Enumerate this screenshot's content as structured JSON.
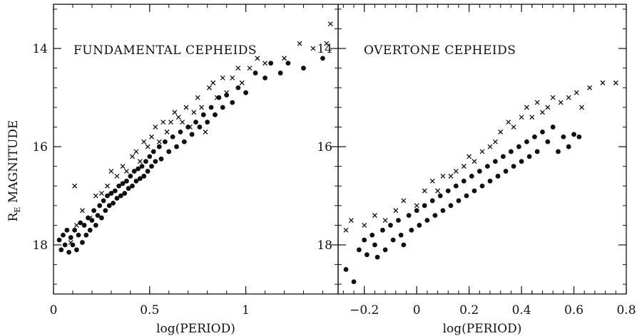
{
  "chart_data": [
    {
      "type": "scatter",
      "title": "FUNDAMENTAL CEPHEIDS",
      "xlabel": "log(PERIOD)",
      "ylabel_main": "R",
      "ylabel_sub": "E",
      "ylabel_rest": " MAGNITUDE",
      "xlim": [
        0.0,
        1.48
      ],
      "ylim": [
        19.0,
        13.1
      ],
      "y_inverted": true,
      "x_ticks": [
        {
          "value": 0,
          "label": "0"
        },
        {
          "value": 0.5,
          "label": "0.5"
        },
        {
          "value": 1,
          "label": "1"
        }
      ],
      "y_ticks": [
        {
          "value": 14,
          "label": "14"
        },
        {
          "value": 16,
          "label": "16"
        },
        {
          "value": 18,
          "label": "18"
        }
      ],
      "series": [
        {
          "marker": "x",
          "points": [
            [
              0.09,
              17.95
            ],
            [
              0.11,
              16.8
            ],
            [
              0.12,
              17.6
            ],
            [
              0.15,
              17.3
            ],
            [
              0.19,
              17.45
            ],
            [
              0.22,
              17.0
            ],
            [
              0.25,
              16.95
            ],
            [
              0.28,
              16.8
            ],
            [
              0.3,
              16.5
            ],
            [
              0.33,
              16.6
            ],
            [
              0.36,
              16.4
            ],
            [
              0.38,
              16.5
            ],
            [
              0.41,
              16.2
            ],
            [
              0.43,
              16.1
            ],
            [
              0.45,
              16.3
            ],
            [
              0.47,
              15.9
            ],
            [
              0.49,
              16.0
            ],
            [
              0.51,
              15.8
            ],
            [
              0.53,
              15.6
            ],
            [
              0.55,
              15.9
            ],
            [
              0.57,
              15.5
            ],
            [
              0.59,
              15.7
            ],
            [
              0.61,
              15.5
            ],
            [
              0.63,
              15.3
            ],
            [
              0.65,
              15.4
            ],
            [
              0.67,
              15.5
            ],
            [
              0.69,
              15.2
            ],
            [
              0.71,
              15.6
            ],
            [
              0.73,
              15.3
            ],
            [
              0.75,
              15.0
            ],
            [
              0.77,
              15.2
            ],
            [
              0.79,
              15.7
            ],
            [
              0.81,
              14.8
            ],
            [
              0.83,
              14.7
            ],
            [
              0.85,
              15.0
            ],
            [
              0.88,
              14.6
            ],
            [
              0.9,
              14.9
            ],
            [
              0.93,
              14.6
            ],
            [
              0.96,
              14.4
            ],
            [
              0.98,
              14.7
            ],
            [
              1.02,
              14.4
            ],
            [
              1.06,
              14.2
            ],
            [
              1.1,
              14.3
            ],
            [
              1.2,
              14.2
            ],
            [
              1.28,
              13.9
            ],
            [
              1.35,
              14.0
            ],
            [
              1.42,
              13.9
            ],
            [
              1.44,
              13.5
            ]
          ]
        },
        {
          "marker": "dot",
          "points": [
            [
              0.03,
              17.9
            ],
            [
              0.04,
              18.1
            ],
            [
              0.05,
              17.8
            ],
            [
              0.06,
              18.0
            ],
            [
              0.07,
              17.7
            ],
            [
              0.08,
              18.15
            ],
            [
              0.09,
              17.85
            ],
            [
              0.1,
              18.0
            ],
            [
              0.11,
              17.7
            ],
            [
              0.12,
              18.1
            ],
            [
              0.13,
              17.8
            ],
            [
              0.14,
              17.55
            ],
            [
              0.15,
              17.95
            ],
            [
              0.16,
              17.6
            ],
            [
              0.17,
              17.8
            ],
            [
              0.18,
              17.45
            ],
            [
              0.19,
              17.7
            ],
            [
              0.2,
              17.5
            ],
            [
              0.21,
              17.3
            ],
            [
              0.22,
              17.6
            ],
            [
              0.23,
              17.4
            ],
            [
              0.24,
              17.2
            ],
            [
              0.25,
              17.45
            ],
            [
              0.26,
              17.1
            ],
            [
              0.27,
              17.3
            ],
            [
              0.28,
              17.0
            ],
            [
              0.29,
              17.2
            ],
            [
              0.3,
              16.95
            ],
            [
              0.31,
              17.15
            ],
            [
              0.32,
              16.9
            ],
            [
              0.33,
              17.05
            ],
            [
              0.34,
              16.8
            ],
            [
              0.35,
              17.0
            ],
            [
              0.36,
              16.75
            ],
            [
              0.37,
              16.95
            ],
            [
              0.38,
              16.7
            ],
            [
              0.39,
              16.85
            ],
            [
              0.4,
              16.6
            ],
            [
              0.41,
              16.8
            ],
            [
              0.42,
              16.5
            ],
            [
              0.43,
              16.7
            ],
            [
              0.44,
              16.45
            ],
            [
              0.45,
              16.65
            ],
            [
              0.46,
              16.4
            ],
            [
              0.47,
              16.6
            ],
            [
              0.48,
              16.3
            ],
            [
              0.49,
              16.5
            ],
            [
              0.5,
              16.2
            ],
            [
              0.51,
              16.4
            ],
            [
              0.52,
              16.1
            ],
            [
              0.53,
              16.3
            ],
            [
              0.55,
              16.0
            ],
            [
              0.56,
              16.25
            ],
            [
              0.58,
              15.9
            ],
            [
              0.6,
              16.1
            ],
            [
              0.62,
              15.8
            ],
            [
              0.64,
              16.0
            ],
            [
              0.66,
              15.7
            ],
            [
              0.68,
              15.9
            ],
            [
              0.7,
              15.6
            ],
            [
              0.72,
              15.75
            ],
            [
              0.74,
              15.5
            ],
            [
              0.76,
              15.6
            ],
            [
              0.78,
              15.35
            ],
            [
              0.8,
              15.5
            ],
            [
              0.82,
              15.2
            ],
            [
              0.84,
              15.35
            ],
            [
              0.86,
              15.0
            ],
            [
              0.88,
              15.2
            ],
            [
              0.9,
              14.95
            ],
            [
              0.93,
              15.1
            ],
            [
              0.96,
              14.8
            ],
            [
              1.0,
              14.9
            ],
            [
              1.05,
              14.5
            ],
            [
              1.1,
              14.6
            ],
            [
              1.13,
              14.3
            ],
            [
              1.18,
              14.5
            ],
            [
              1.22,
              14.3
            ],
            [
              1.3,
              14.4
            ],
            [
              1.4,
              14.2
            ]
          ]
        }
      ]
    },
    {
      "type": "scatter",
      "title": "OVERTONE CEPHEIDS",
      "xlabel": "log(PERIOD)",
      "xlim": [
        -0.3,
        0.8
      ],
      "ylim": [
        19.0,
        13.1
      ],
      "y_inverted": true,
      "x_ticks": [
        {
          "value": -0.2,
          "label": "−0.2"
        },
        {
          "value": 0,
          "label": "0"
        },
        {
          "value": 0.2,
          "label": "0.2"
        },
        {
          "value": 0.4,
          "label": "0.4"
        },
        {
          "value": 0.6,
          "label": "0.6"
        },
        {
          "value": 0.8,
          "label": "0.8"
        }
      ],
      "y_ticks": [
        {
          "value": 14,
          "label": "14"
        },
        {
          "value": 16,
          "label": "16"
        },
        {
          "value": 18,
          "label": "18"
        }
      ],
      "series": [
        {
          "marker": "x",
          "points": [
            [
              -0.27,
              17.7
            ],
            [
              -0.25,
              17.5
            ],
            [
              -0.2,
              17.6
            ],
            [
              -0.16,
              17.4
            ],
            [
              -0.12,
              17.5
            ],
            [
              -0.08,
              17.3
            ],
            [
              -0.05,
              17.1
            ],
            [
              0.0,
              17.2
            ],
            [
              0.03,
              16.9
            ],
            [
              0.06,
              16.7
            ],
            [
              0.08,
              16.9
            ],
            [
              0.1,
              16.6
            ],
            [
              0.13,
              16.6
            ],
            [
              0.15,
              16.5
            ],
            [
              0.18,
              16.4
            ],
            [
              0.2,
              16.2
            ],
            [
              0.22,
              16.3
            ],
            [
              0.25,
              16.1
            ],
            [
              0.28,
              16.0
            ],
            [
              0.3,
              15.9
            ],
            [
              0.32,
              15.7
            ],
            [
              0.35,
              15.5
            ],
            [
              0.37,
              15.6
            ],
            [
              0.4,
              15.4
            ],
            [
              0.42,
              15.2
            ],
            [
              0.44,
              15.4
            ],
            [
              0.46,
              15.1
            ],
            [
              0.48,
              15.3
            ],
            [
              0.5,
              15.2
            ],
            [
              0.52,
              15.0
            ],
            [
              0.55,
              15.1
            ],
            [
              0.58,
              15.0
            ],
            [
              0.61,
              14.9
            ],
            [
              0.63,
              15.2
            ],
            [
              0.66,
              14.8
            ],
            [
              0.71,
              14.7
            ],
            [
              0.76,
              14.7
            ]
          ]
        },
        {
          "marker": "dot",
          "points": [
            [
              -0.27,
              18.5
            ],
            [
              -0.24,
              18.75
            ],
            [
              -0.22,
              18.1
            ],
            [
              -0.2,
              17.9
            ],
            [
              -0.19,
              18.2
            ],
            [
              -0.17,
              17.8
            ],
            [
              -0.16,
              18.0
            ],
            [
              -0.15,
              18.25
            ],
            [
              -0.13,
              17.7
            ],
            [
              -0.12,
              18.1
            ],
            [
              -0.1,
              17.6
            ],
            [
              -0.09,
              17.9
            ],
            [
              -0.07,
              17.5
            ],
            [
              -0.06,
              17.8
            ],
            [
              -0.05,
              18.0
            ],
            [
              -0.03,
              17.4
            ],
            [
              -0.02,
              17.7
            ],
            [
              0.0,
              17.3
            ],
            [
              0.01,
              17.6
            ],
            [
              0.03,
              17.2
            ],
            [
              0.04,
              17.5
            ],
            [
              0.06,
              17.1
            ],
            [
              0.07,
              17.4
            ],
            [
              0.09,
              17.0
            ],
            [
              0.1,
              17.3
            ],
            [
              0.12,
              16.9
            ],
            [
              0.13,
              17.2
            ],
            [
              0.15,
              16.8
            ],
            [
              0.16,
              17.1
            ],
            [
              0.18,
              16.7
            ],
            [
              0.19,
              17.0
            ],
            [
              0.21,
              16.6
            ],
            [
              0.22,
              16.9
            ],
            [
              0.24,
              16.5
            ],
            [
              0.25,
              16.8
            ],
            [
              0.27,
              16.4
            ],
            [
              0.28,
              16.7
            ],
            [
              0.3,
              16.3
            ],
            [
              0.31,
              16.6
            ],
            [
              0.33,
              16.2
            ],
            [
              0.34,
              16.5
            ],
            [
              0.36,
              16.1
            ],
            [
              0.37,
              16.4
            ],
            [
              0.39,
              16.0
            ],
            [
              0.4,
              16.3
            ],
            [
              0.42,
              15.9
            ],
            [
              0.43,
              16.2
            ],
            [
              0.45,
              15.8
            ],
            [
              0.46,
              16.1
            ],
            [
              0.48,
              15.7
            ],
            [
              0.5,
              15.9
            ],
            [
              0.52,
              15.6
            ],
            [
              0.54,
              16.1
            ],
            [
              0.56,
              15.8
            ],
            [
              0.58,
              16.0
            ],
            [
              0.6,
              15.75
            ],
            [
              0.62,
              15.8
            ]
          ]
        }
      ]
    }
  ]
}
